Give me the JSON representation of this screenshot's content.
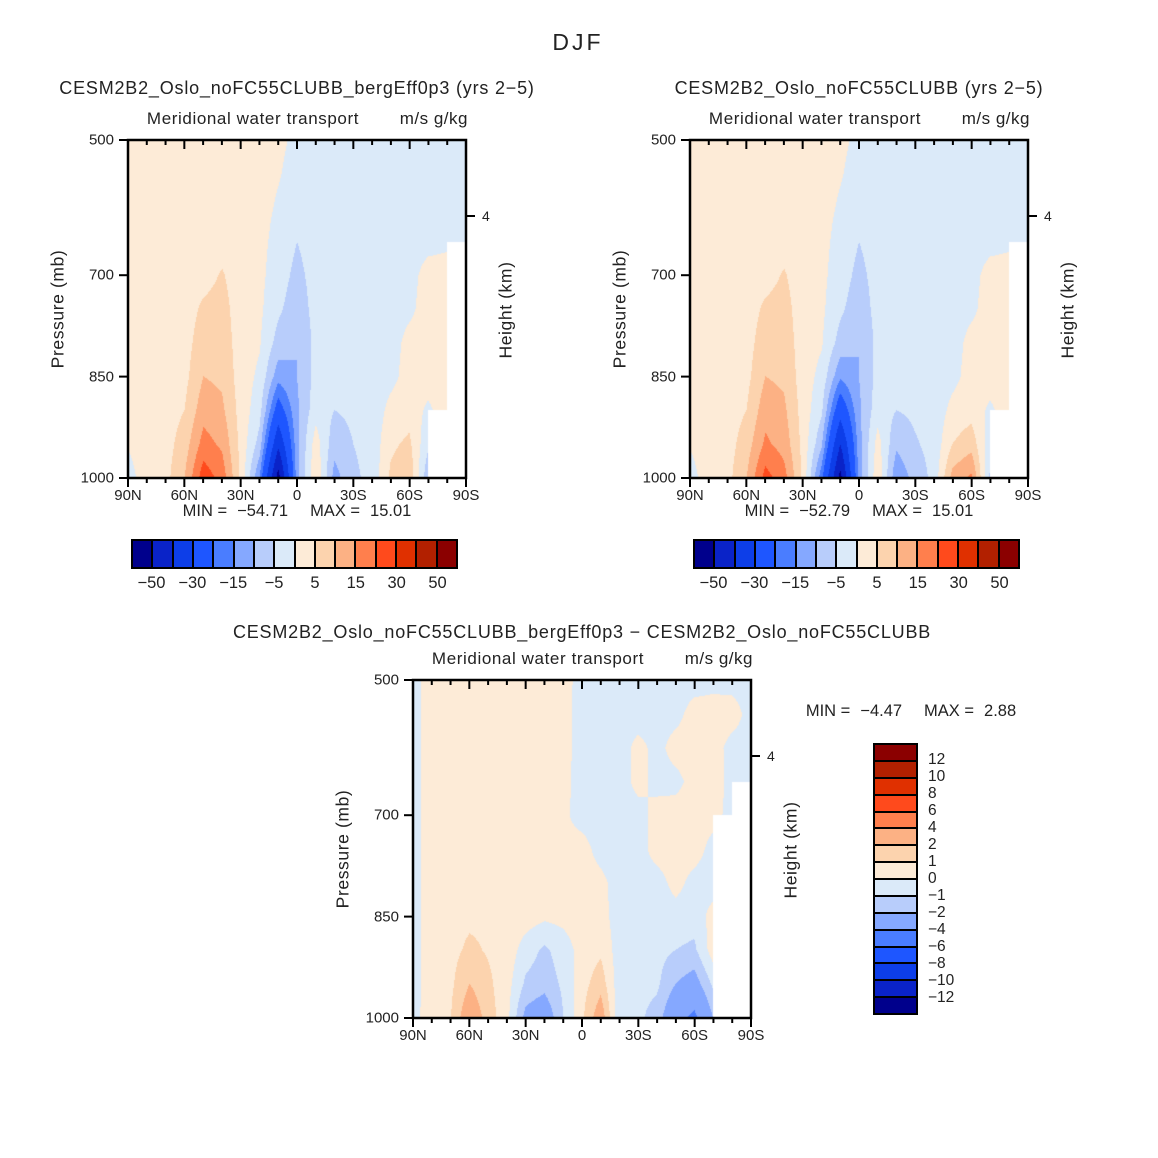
{
  "figure_title": "DJF",
  "panels": [
    {
      "title": "CESM2B2_Oslo_noFC55CLUBB_bergEff0p3 (yrs 2−5)",
      "subtitle": "Meridional water transport",
      "units": "m/s g/kg",
      "stats": {
        "min_label": "MIN =",
        "min_value": "−54.71",
        "max_label": "MAX =",
        "max_value": "15.01"
      }
    },
    {
      "title": "CESM2B2_Oslo_noFC55CLUBB (yrs 2−5)",
      "subtitle": "Meridional water transport",
      "units": "m/s g/kg",
      "stats": {
        "min_label": "MIN =",
        "min_value": "−52.79",
        "max_label": "MAX =",
        "max_value": "15.01"
      }
    },
    {
      "title": "CESM2B2_Oslo_noFC55CLUBB_bergEff0p3 − CESM2B2_Oslo_noFC55CLUBB",
      "subtitle": "Meridional water transport",
      "units": "m/s g/kg",
      "stats": {
        "min_label": "MIN =",
        "min_value": "−4.47",
        "max_label": "MAX =",
        "max_value": "2.88"
      }
    }
  ],
  "axes": {
    "pressure_label": "Pressure (mb)",
    "pressure_tick_labels": [
      "500",
      "700",
      "850",
      "1000"
    ],
    "lat_tick_labels": [
      "90N",
      "60N",
      "30N",
      "0",
      "30S",
      "60S",
      "90S"
    ],
    "height_label": "Height (km)",
    "height_tick_label": "4"
  },
  "colorbar_main": {
    "labels": [
      "−50",
      "−30",
      "−15",
      "−5",
      "5",
      "15",
      "30",
      "50"
    ]
  },
  "colorbar_diff": {
    "labels_top_to_bottom": [
      "12",
      "10",
      "8",
      "6",
      "4",
      "2",
      "1",
      "0",
      "−1",
      "−2",
      "−4",
      "−6",
      "−8",
      "−10",
      "−12"
    ]
  },
  "chart_data": {
    "type": "heatmap",
    "x_label": "latitude",
    "x_latitudes": [
      90,
      80,
      70,
      60,
      50,
      40,
      30,
      20,
      10,
      0,
      -10,
      -20,
      -30,
      -40,
      -50,
      -60,
      -70,
      -80,
      -90
    ],
    "y_label": "pressure_mb",
    "y_pressures_mb": [
      500,
      550,
      600,
      650,
      700,
      750,
      800,
      850,
      900,
      950,
      1000
    ],
    "levels_main": [
      -50,
      -40,
      -30,
      -20,
      -15,
      -10,
      -5,
      0,
      5,
      10,
      15,
      20,
      30,
      40,
      50
    ],
    "levels_diff": [
      -12,
      -10,
      -8,
      -6,
      -4,
      -2,
      -1,
      0,
      1,
      2,
      4,
      6,
      8,
      10,
      12
    ],
    "palette_blue_to_red": [
      "#00008C",
      "#0A23C8",
      "#0D3EE8",
      "#1E56FF",
      "#4A7DFF",
      "#85A8FF",
      "#B8CDFB",
      "#DBEAF9",
      "#FDEBD7",
      "#FCD3AE",
      "#FCB184",
      "#FF7F4D",
      "#FF4A1C",
      "#E03000",
      "#B22000",
      "#8B0000"
    ],
    "panels": [
      {
        "name": "CESM2B2_Oslo_noFC55CLUBB_bergEff0p3",
        "min": -54.71,
        "max": 15.01,
        "levels": "levels_main",
        "grid": [
          [
            2,
            2,
            2,
            2,
            2,
            2,
            2,
            1.5,
            0.8,
            -0.8,
            -1.8,
            -2,
            -2,
            -2,
            -2,
            -2,
            -1.8,
            -1.5,
            -1.5
          ],
          [
            2,
            2,
            2,
            2,
            2.2,
            2.2,
            2,
            1.5,
            0.3,
            -1.5,
            -2,
            -2,
            -2,
            -2,
            -2,
            -2,
            -1.8,
            -1.5,
            -1.5
          ],
          [
            2,
            2,
            2,
            2,
            2.4,
            2.6,
            2,
            1.4,
            -0.5,
            -2.5,
            -2.2,
            -2,
            -2,
            -2,
            -2,
            -2,
            -1.8,
            -1.2,
            -1.2
          ],
          [
            2,
            2,
            2,
            2,
            2.6,
            3,
            2,
            1.3,
            -1.5,
            -5,
            -2.6,
            -2,
            -2.2,
            -2.2,
            -2,
            -1.6,
            -1.2,
            -0.8,
            -0.8
          ],
          [
            2,
            2,
            2,
            2.2,
            3,
            5.5,
            2,
            1.2,
            -2.5,
            -6.5,
            -3,
            -2.2,
            -2.4,
            -2.4,
            -2,
            -1.4,
            1.5,
            1.8,
            null
          ],
          [
            2,
            2,
            2,
            2.4,
            6,
            7,
            2.2,
            1,
            -4,
            -8,
            -3.2,
            -2.4,
            -2.6,
            -2.6,
            -2,
            -1,
            2,
            2.2,
            null
          ],
          [
            2,
            2,
            2.2,
            2.8,
            8,
            8,
            2.4,
            0.5,
            -7,
            -10,
            -3.5,
            -2.6,
            -3,
            -2.8,
            -2,
            1.5,
            2.2,
            2.4,
            null
          ],
          [
            2,
            2.2,
            2.4,
            3.5,
            10,
            9,
            2.6,
            -1,
            -13,
            -10,
            -3.5,
            -3,
            -3.5,
            -3,
            -1.5,
            2,
            2.5,
            2.6,
            null
          ],
          [
            2,
            2.4,
            2.6,
            5,
            13,
            11,
            3,
            -3,
            -24,
            -11,
            -2,
            -5,
            -4,
            -3.2,
            1.5,
            3,
            -1,
            2.8,
            null
          ],
          [
            0.5,
            2.6,
            3,
            7.5,
            17,
            14,
            3.5,
            -7,
            -38,
            -11.5,
            2.5,
            -8,
            -5,
            -3.4,
            4,
            6,
            -4,
            null,
            null
          ],
          [
            -2,
            3,
            3.5,
            10,
            23,
            18,
            4,
            -15,
            -54,
            -12,
            4.5,
            -12,
            -6,
            -3.6,
            6,
            9,
            -9,
            null,
            null
          ]
        ]
      },
      {
        "name": "CESM2B2_Oslo_noFC55CLUBB",
        "min": -52.79,
        "max": 15.01,
        "levels": "levels_main",
        "grid": [
          [
            2,
            2,
            2,
            2,
            2,
            2,
            2,
            1.5,
            0.8,
            -0.8,
            -1.8,
            -2,
            -2,
            -2,
            -2,
            -2,
            -1.8,
            -1.5,
            -1.5
          ],
          [
            2,
            2,
            2,
            2,
            2.2,
            2.2,
            2,
            1.5,
            0.3,
            -1.5,
            -2,
            -2,
            -2,
            -2,
            -2,
            -2,
            -1.8,
            -1.5,
            -1.5
          ],
          [
            2,
            2,
            2,
            2,
            2.4,
            2.6,
            2,
            1.4,
            -0.5,
            -2.5,
            -2.2,
            -2,
            -2,
            -2,
            -2,
            -2,
            -1.8,
            -1.2,
            -1.2
          ],
          [
            2,
            2,
            2,
            2,
            2.6,
            3,
            2,
            1.3,
            -1.5,
            -5,
            -2.6,
            -2,
            -2.2,
            -2.2,
            -2,
            -1.6,
            -1.2,
            -0.8,
            -0.8
          ],
          [
            2,
            2,
            2,
            2.2,
            3,
            5.5,
            2,
            1.2,
            -2.5,
            -6.5,
            -3,
            -2.2,
            -2.4,
            -2.4,
            -2,
            -1.4,
            1.5,
            1.8,
            null
          ],
          [
            2,
            2,
            2,
            2.4,
            6,
            7,
            2.2,
            1,
            -4,
            -8,
            -3.2,
            -2.4,
            -2.6,
            -2.6,
            -2,
            -1,
            2,
            2.2,
            null
          ],
          [
            2,
            2,
            2.2,
            2.8,
            8,
            8,
            2.4,
            0.5,
            -7,
            -10,
            -3.5,
            -2.6,
            -3,
            -2.8,
            -2,
            1.5,
            2.2,
            2.4,
            null
          ],
          [
            2,
            2.2,
            2.4,
            3.5,
            10,
            9,
            2.6,
            -1.5,
            -14,
            -10,
            -3.5,
            -3,
            -3.5,
            -3,
            -1.5,
            2,
            2.5,
            2.6,
            null
          ],
          [
            2,
            2.4,
            2.6,
            5,
            13,
            11,
            3,
            -4,
            -26,
            -11,
            -2,
            -5,
            -4,
            -3.2,
            1.5,
            3,
            -1,
            2.8,
            null
          ],
          [
            0.5,
            2.6,
            3,
            7.5,
            16,
            13,
            3.5,
            -9,
            -40,
            -12,
            2,
            -9,
            -5.5,
            -3.4,
            5,
            8,
            -3,
            null,
            null
          ],
          [
            -2,
            3,
            3.5,
            10,
            22,
            17,
            4,
            -18,
            -53,
            -13,
            4,
            -14,
            -8,
            -3.6,
            12,
            16,
            -6,
            null,
            null
          ]
        ]
      },
      {
        "name": "difference",
        "min": -4.47,
        "max": 2.88,
        "levels": "levels_diff",
        "grid": [
          [
            -0.4,
            0.6,
            0.6,
            0.6,
            0.6,
            0.6,
            0.6,
            0.6,
            0.5,
            -0.5,
            -0.6,
            -0.6,
            -0.6,
            -0.6,
            -0.5,
            -0.5,
            -0.4,
            -0.4,
            -0.4
          ],
          [
            -0.4,
            0.6,
            0.6,
            0.6,
            0.6,
            0.6,
            0.6,
            0.6,
            0.4,
            -0.5,
            -0.6,
            -0.6,
            -0.6,
            -0.5,
            -0.4,
            0.5,
            0.6,
            0.5,
            -0.4
          ],
          [
            -0.4,
            0.6,
            0.6,
            0.6,
            0.6,
            0.6,
            0.6,
            0.6,
            0.4,
            -0.5,
            -0.6,
            -0.6,
            0.4,
            -0.4,
            0.5,
            0.6,
            0.5,
            -0.4,
            -0.4
          ],
          [
            -0.4,
            0.6,
            0.7,
            0.7,
            0.7,
            0.7,
            0.6,
            0.6,
            0.3,
            -0.4,
            -0.5,
            -0.6,
            0.4,
            -0.4,
            -0.4,
            0.5,
            0.6,
            -0.4,
            -0.4
          ],
          [
            -0.4,
            0.6,
            0.7,
            0.7,
            0.7,
            0.7,
            0.6,
            0.5,
            0.2,
            -0.4,
            -0.5,
            -0.6,
            -0.5,
            0.5,
            0.6,
            0.6,
            0.4,
            -0.4,
            null
          ],
          [
            -0.4,
            0.6,
            0.7,
            0.7,
            0.7,
            0.7,
            0.6,
            0.5,
            0.3,
            0.4,
            -0.4,
            -0.6,
            -0.5,
            0.5,
            0.6,
            0.5,
            -0.4,
            null,
            null
          ],
          [
            -0.4,
            0.6,
            0.7,
            0.7,
            0.7,
            0.7,
            0.6,
            0.4,
            0.3,
            0.5,
            0.3,
            -0.5,
            -0.6,
            -0.5,
            0.4,
            -0.4,
            -0.5,
            null,
            null
          ],
          [
            -0.4,
            0.6,
            0.7,
            0.8,
            0.8,
            0.7,
            0.5,
            0.2,
            0.3,
            0.5,
            0.4,
            -0.5,
            -0.6,
            -0.6,
            -0.5,
            -0.6,
            0.4,
            null,
            null
          ],
          [
            -0.4,
            0.6,
            0.7,
            1.2,
            0.9,
            0.6,
            -0.5,
            -1.2,
            -0.5,
            0.4,
            0.8,
            -0.5,
            -0.6,
            -0.7,
            -1,
            -1.2,
            0.5,
            null,
            null
          ],
          [
            -0.4,
            0.6,
            0.8,
            2,
            1.2,
            0.4,
            -1.2,
            -1.6,
            -0.8,
            0.6,
            1.6,
            -0.6,
            -0.7,
            -0.8,
            -2,
            -2.6,
            -0.8,
            null,
            null
          ],
          [
            -0.4,
            0.7,
            1,
            3,
            1.5,
            0.3,
            -2.4,
            -3,
            -1,
            0.8,
            2.8,
            -0.8,
            -0.8,
            -1.4,
            -3.4,
            -4.4,
            -2,
            null,
            null
          ]
        ]
      }
    ]
  }
}
